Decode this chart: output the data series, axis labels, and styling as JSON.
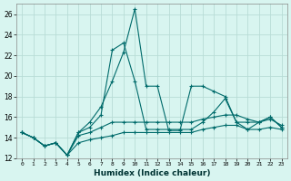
{
  "title": "",
  "xlabel": "Humidex (Indice chaleur)",
  "background_color": "#d8f5f0",
  "grid_color": "#b8dcd6",
  "line_color": "#006b6b",
  "xlim": [
    -0.5,
    23.5
  ],
  "ylim": [
    12,
    27
  ],
  "xticks": [
    0,
    1,
    2,
    3,
    4,
    5,
    6,
    7,
    8,
    9,
    10,
    11,
    12,
    13,
    14,
    15,
    16,
    17,
    18,
    19,
    20,
    21,
    22,
    23
  ],
  "yticks": [
    12,
    14,
    16,
    18,
    20,
    22,
    24,
    26
  ],
  "series": [
    [
      14.5,
      14.0,
      13.2,
      13.5,
      12.3,
      14.5,
      15.5,
      17.0,
      19.5,
      22.3,
      26.5,
      19.0,
      19.0,
      14.7,
      14.7,
      19.0,
      19.0,
      18.5,
      18.0,
      15.5,
      15.5,
      15.5,
      16.0,
      15.0
    ],
    [
      14.5,
      14.0,
      13.2,
      13.5,
      12.3,
      14.5,
      15.0,
      16.2,
      22.5,
      23.2,
      19.5,
      14.8,
      14.8,
      14.8,
      14.8,
      14.8,
      15.5,
      16.5,
      17.8,
      15.5,
      14.8,
      15.5,
      16.0,
      15.0
    ],
    [
      14.5,
      14.0,
      13.2,
      13.5,
      12.3,
      14.2,
      14.5,
      15.0,
      15.5,
      15.5,
      15.5,
      15.5,
      15.5,
      15.5,
      15.5,
      15.5,
      15.8,
      16.0,
      16.2,
      16.2,
      15.8,
      15.5,
      15.8,
      15.2
    ],
    [
      14.5,
      14.0,
      13.2,
      13.5,
      12.3,
      13.5,
      13.8,
      14.0,
      14.2,
      14.5,
      14.5,
      14.5,
      14.5,
      14.5,
      14.5,
      14.5,
      14.8,
      15.0,
      15.2,
      15.2,
      14.8,
      14.8,
      15.0,
      14.8
    ]
  ]
}
